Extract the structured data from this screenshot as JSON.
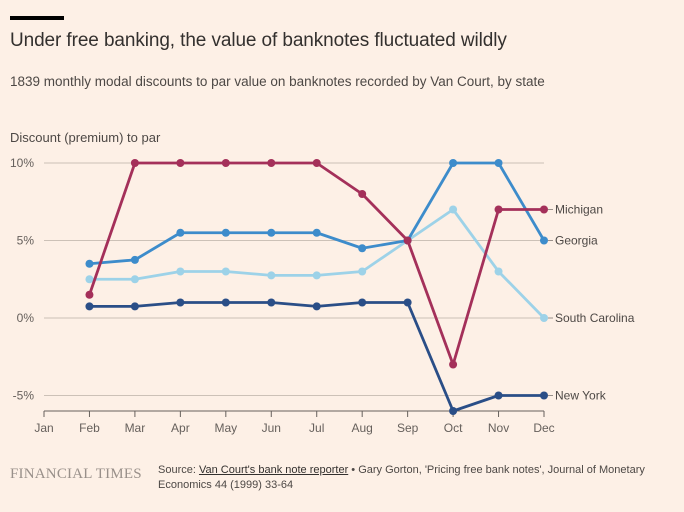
{
  "header": {
    "title": "Under free banking, the value of banknotes fluctuated wildly",
    "subtitle": "1839 monthly modal discounts to par value on banknotes recorded by Van Court, by state"
  },
  "footer": {
    "logo": "FINANCIAL TIMES",
    "source_prefix": "Source: ",
    "source_link": "Van Court's bank note reporter",
    "source_rest": " • Gary Gorton, 'Pricing free bank notes', Journal of Monetary Economics 44 (1999) 33-64"
  },
  "chart_data": {
    "type": "line",
    "title": "Under free banking, the value of banknotes fluctuated wildly",
    "subtitle": "1839 monthly modal discounts to par value on banknotes recorded by Van Court, by state",
    "xlabel": "",
    "ylabel": "Discount (premium) to par",
    "ylim": [
      -6,
      10
    ],
    "grid": true,
    "legend": "right-inline-labels",
    "x": [
      "Jan",
      "Feb",
      "Mar",
      "Apr",
      "May",
      "Jun",
      "Jul",
      "Aug",
      "Sep",
      "Oct",
      "Nov",
      "Dec"
    ],
    "x_ticks": [
      "Jan",
      "Feb",
      "Mar",
      "Apr",
      "May",
      "Jun",
      "Jul",
      "Aug",
      "Sep",
      "Oct",
      "Nov",
      "Dec"
    ],
    "y_ticks": [
      {
        "value": 10,
        "label": "10%"
      },
      {
        "value": 5,
        "label": "5%"
      },
      {
        "value": 0,
        "label": "0%"
      },
      {
        "value": -5,
        "label": "-5%"
      }
    ],
    "series": [
      {
        "name": "Michigan",
        "color": "#a4305a",
        "values": [
          null,
          1.5,
          10,
          10,
          10,
          10,
          10,
          8,
          5,
          -3,
          7,
          7
        ]
      },
      {
        "name": "Georgia",
        "color": "#3d8ccb",
        "values": [
          null,
          3.5,
          3.75,
          5.5,
          5.5,
          5.5,
          5.5,
          4.5,
          5,
          10,
          10,
          5
        ]
      },
      {
        "name": "South Carolina",
        "color": "#9dd2e8",
        "values": [
          null,
          2.5,
          2.5,
          3,
          3,
          2.75,
          2.75,
          3,
          5,
          7,
          3,
          0
        ]
      },
      {
        "name": "New York",
        "color": "#2a4e87",
        "values": [
          null,
          0.75,
          0.75,
          1,
          1,
          1,
          0.75,
          1,
          1,
          -6,
          -5,
          -5
        ]
      }
    ]
  }
}
